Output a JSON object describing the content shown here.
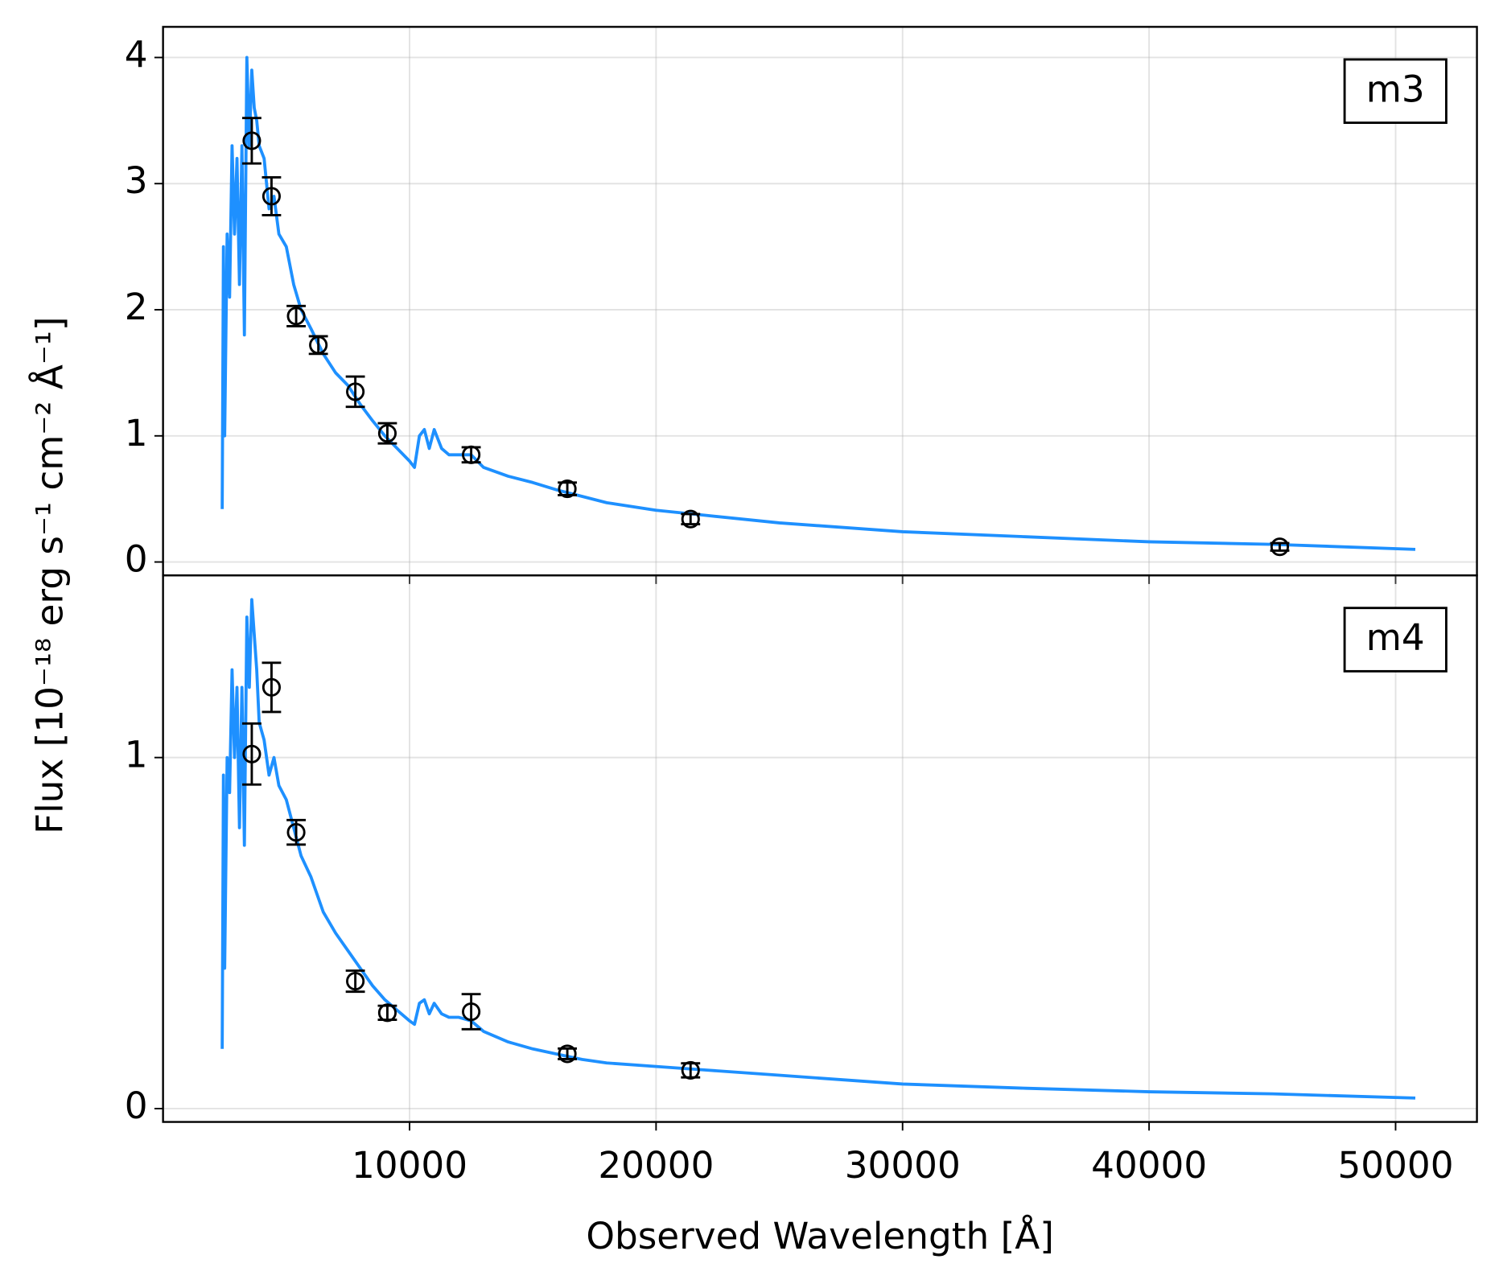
{
  "chart_data": [
    {
      "type": "line",
      "label": "m3",
      "ylabel": "Flux [10⁻¹⁸ erg s⁻¹ cm⁻² Å⁻¹]",
      "xlim": [
        0,
        53300
      ],
      "xticks": [
        10000,
        20000,
        30000,
        40000,
        50000
      ],
      "ylim": [
        -0.106,
        4.243
      ],
      "yticks": [
        0,
        1,
        2,
        3,
        4
      ],
      "grid": true,
      "model": {
        "color": "#1e90ff",
        "x": [
          2400,
          2450,
          2500,
          2600,
          2700,
          2800,
          2900,
          3000,
          3100,
          3200,
          3300,
          3400,
          3500,
          3600,
          3700,
          3800,
          3900,
          4100,
          4300,
          4500,
          4700,
          5000,
          5300,
          5600,
          6000,
          6500,
          7000,
          7500,
          8000,
          8500,
          9000,
          9500,
          10000,
          10200,
          10400,
          10600,
          10800,
          11000,
          11300,
          11600,
          12000,
          12500,
          13000,
          14000,
          15000,
          16000,
          17000,
          18000,
          20000,
          22000,
          25000,
          30000,
          35000,
          40000,
          45000,
          50800
        ],
        "values": [
          0.42,
          2.5,
          1.0,
          2.6,
          2.1,
          3.3,
          2.6,
          3.2,
          2.2,
          3.3,
          1.8,
          4.0,
          3.3,
          3.9,
          3.6,
          3.5,
          3.3,
          3.2,
          2.8,
          2.9,
          2.6,
          2.5,
          2.2,
          2.0,
          1.85,
          1.65,
          1.5,
          1.4,
          1.25,
          1.12,
          1.0,
          0.9,
          0.8,
          0.75,
          1.0,
          1.05,
          0.9,
          1.05,
          0.9,
          0.85,
          0.85,
          0.85,
          0.75,
          0.68,
          0.63,
          0.57,
          0.52,
          0.47,
          0.41,
          0.37,
          0.31,
          0.24,
          0.2,
          0.16,
          0.14,
          0.1
        ]
      },
      "points": {
        "color": "#000000",
        "x": [
          3600,
          4400,
          5400,
          6300,
          7800,
          9100,
          12500,
          16400,
          21400,
          45300
        ],
        "values": [
          3.34,
          2.9,
          1.95,
          1.72,
          1.35,
          1.02,
          0.85,
          0.58,
          0.34,
          0.12
        ],
        "errors": [
          0.18,
          0.15,
          0.08,
          0.07,
          0.12,
          0.08,
          0.06,
          0.05,
          0.04,
          0.03
        ]
      }
    },
    {
      "type": "line",
      "label": "m4",
      "xlabel": "Observed Wavelength [Å]",
      "xlim": [
        0,
        53300
      ],
      "xticks": [
        10000,
        20000,
        30000,
        40000,
        50000
      ],
      "ylim": [
        -0.038,
        1.519
      ],
      "yticks": [
        0,
        1
      ],
      "grid": true,
      "model": {
        "color": "#1e90ff",
        "x": [
          2400,
          2450,
          2500,
          2600,
          2700,
          2800,
          2900,
          3000,
          3100,
          3200,
          3300,
          3400,
          3500,
          3600,
          3700,
          3800,
          3900,
          4100,
          4300,
          4500,
          4700,
          5000,
          5300,
          5600,
          6000,
          6500,
          7000,
          7500,
          8000,
          8500,
          9000,
          9500,
          10000,
          10200,
          10400,
          10600,
          10800,
          11000,
          11300,
          11600,
          12000,
          12500,
          13000,
          14000,
          15000,
          16000,
          17000,
          18000,
          20000,
          22000,
          25000,
          30000,
          35000,
          40000,
          45000,
          50800
        ],
        "values": [
          0.17,
          0.95,
          0.4,
          1.0,
          0.9,
          1.25,
          1.0,
          1.2,
          0.8,
          1.2,
          0.75,
          1.4,
          1.2,
          1.45,
          1.35,
          1.25,
          1.1,
          1.05,
          0.95,
          1.0,
          0.92,
          0.88,
          0.8,
          0.72,
          0.66,
          0.56,
          0.5,
          0.45,
          0.4,
          0.35,
          0.31,
          0.28,
          0.25,
          0.24,
          0.3,
          0.31,
          0.27,
          0.3,
          0.27,
          0.26,
          0.26,
          0.25,
          0.22,
          0.19,
          0.17,
          0.155,
          0.14,
          0.13,
          0.12,
          0.11,
          0.095,
          0.07,
          0.058,
          0.048,
          0.042,
          0.03
        ]
      },
      "points": {
        "color": "#000000",
        "x": [
          3600,
          4400,
          5400,
          7800,
          9100,
          12500,
          16400,
          21400
        ],
        "values": [
          1.01,
          1.2,
          0.787,
          0.363,
          0.273,
          0.276,
          0.156,
          0.109
        ],
        "errors": [
          0.087,
          0.07,
          0.035,
          0.03,
          0.02,
          0.05,
          0.015,
          0.02
        ]
      }
    }
  ]
}
